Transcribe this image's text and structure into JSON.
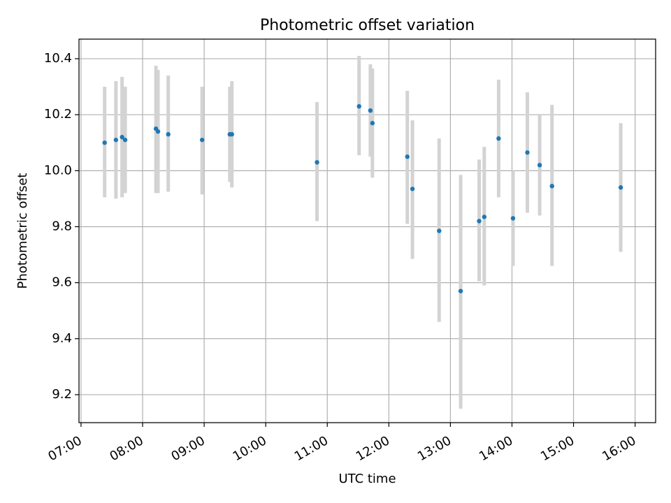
{
  "chart_data": {
    "type": "scatter",
    "title": "Photometric offset variation",
    "xlabel": "UTC time",
    "ylabel": "Photometric offset",
    "xlim": [
      "06:58",
      "16:20"
    ],
    "ylim": [
      9.1,
      10.47
    ],
    "x_ticks": [
      "07:00",
      "08:00",
      "09:00",
      "10:00",
      "11:00",
      "12:00",
      "13:00",
      "14:00",
      "15:00",
      "16:00"
    ],
    "y_ticks": [
      9.2,
      9.4,
      9.6,
      9.8,
      10.0,
      10.2,
      10.4
    ],
    "grid": true,
    "points": [
      {
        "x": "07:23",
        "y": 10.1,
        "ylow": 9.905,
        "yhigh": 10.3
      },
      {
        "x": "07:34",
        "y": 10.11,
        "ylow": 9.9,
        "yhigh": 10.32
      },
      {
        "x": "07:40",
        "y": 10.12,
        "ylow": 9.905,
        "yhigh": 10.335
      },
      {
        "x": "07:43",
        "y": 10.11,
        "ylow": 9.92,
        "yhigh": 10.3
      },
      {
        "x": "08:13",
        "y": 10.15,
        "ylow": 9.92,
        "yhigh": 10.375
      },
      {
        "x": "08:15",
        "y": 10.14,
        "ylow": 9.92,
        "yhigh": 10.36
      },
      {
        "x": "08:25",
        "y": 10.13,
        "ylow": 9.925,
        "yhigh": 10.34
      },
      {
        "x": "08:58",
        "y": 10.11,
        "ylow": 9.915,
        "yhigh": 10.3
      },
      {
        "x": "09:25",
        "y": 10.13,
        "ylow": 9.96,
        "yhigh": 10.3
      },
      {
        "x": "09:27",
        "y": 10.13,
        "ylow": 9.94,
        "yhigh": 10.32
      },
      {
        "x": "10:50",
        "y": 10.03,
        "ylow": 9.82,
        "yhigh": 10.245
      },
      {
        "x": "11:31",
        "y": 10.23,
        "ylow": 10.055,
        "yhigh": 10.41
      },
      {
        "x": "11:42",
        "y": 10.215,
        "ylow": 10.05,
        "yhigh": 10.38
      },
      {
        "x": "11:44",
        "y": 10.17,
        "ylow": 9.975,
        "yhigh": 10.365
      },
      {
        "x": "12:18",
        "y": 10.05,
        "ylow": 9.81,
        "yhigh": 10.285
      },
      {
        "x": "12:23",
        "y": 9.935,
        "ylow": 9.685,
        "yhigh": 10.18
      },
      {
        "x": "12:49",
        "y": 9.785,
        "ylow": 9.46,
        "yhigh": 10.115
      },
      {
        "x": "13:10",
        "y": 9.57,
        "ylow": 9.15,
        "yhigh": 9.985
      },
      {
        "x": "13:28",
        "y": 9.82,
        "ylow": 9.605,
        "yhigh": 10.04
      },
      {
        "x": "13:33",
        "y": 9.835,
        "ylow": 9.59,
        "yhigh": 10.085
      },
      {
        "x": "13:47",
        "y": 10.115,
        "ylow": 9.905,
        "yhigh": 10.325
      },
      {
        "x": "14:01",
        "y": 9.83,
        "ylow": 9.66,
        "yhigh": 10.0
      },
      {
        "x": "14:15",
        "y": 10.065,
        "ylow": 9.85,
        "yhigh": 10.28
      },
      {
        "x": "14:27",
        "y": 10.02,
        "ylow": 9.84,
        "yhigh": 10.2
      },
      {
        "x": "14:39",
        "y": 9.945,
        "ylow": 9.66,
        "yhigh": 10.235
      },
      {
        "x": "15:46",
        "y": 9.94,
        "ylow": 9.71,
        "yhigh": 10.17
      }
    ],
    "colors": {
      "marker": "#1f77b4",
      "errorbar": "#d3d3d3",
      "grid": "#b0b0b0",
      "axes": "#000000"
    }
  }
}
